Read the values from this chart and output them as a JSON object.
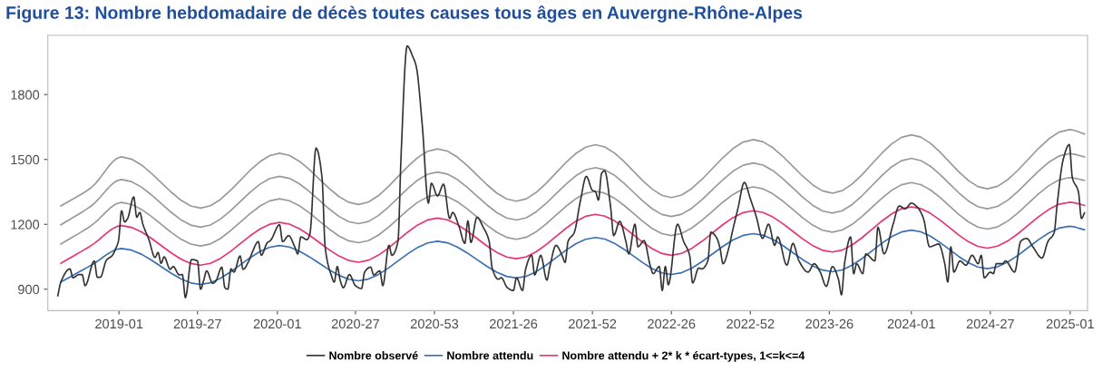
{
  "chart_data": {
    "type": "line",
    "title": "Figure 13: Nombre hebdomadaire de décès toutes causes tous âges en Auvergne-Rhône-Alpes",
    "xlim": [
      "2018-07-21",
      "2025-02-10"
    ],
    "ylim": [
      801,
      2074
    ],
    "xticks": [
      {
        "value": "2019-01-01",
        "label": "2019-01"
      },
      {
        "value": "2019-07-01",
        "label": "2019-27"
      },
      {
        "value": "2020-01-01",
        "label": "2020-01"
      },
      {
        "value": "2020-06-29",
        "label": "2020-27"
      },
      {
        "value": "2020-12-28",
        "label": "2020-53"
      },
      {
        "value": "2021-06-28",
        "label": "2021-26"
      },
      {
        "value": "2021-12-27",
        "label": "2021-52"
      },
      {
        "value": "2022-06-27",
        "label": "2022-26"
      },
      {
        "value": "2022-12-26",
        "label": "2022-52"
      },
      {
        "value": "2023-06-26",
        "label": "2023-26"
      },
      {
        "value": "2024-01-01",
        "label": "2024-01"
      },
      {
        "value": "2024-07-01",
        "label": "2024-27"
      },
      {
        "value": "2025-01-01",
        "label": "2025-01"
      }
    ],
    "yticks": [
      900,
      1200,
      1500,
      1800
    ],
    "grid": false,
    "legend": "bottom",
    "series": [
      {
        "color": "#999999",
        "x": [
          "2018-08-20",
          "2018-10-29",
          "2019-01-07",
          "2019-07-08",
          "2020-01-06",
          "2020-07-06",
          "2021-01-04",
          "2021-07-05",
          "2022-01-03",
          "2022-06-27",
          "2023-01-02",
          "2023-07-03",
          "2024-01-01",
          "2024-06-24",
          "2024-12-30",
          "2025-02-03"
        ],
        "values": [
          1285,
          1370,
          1512,
          1275,
          1529,
          1292,
          1549,
          1307,
          1568,
          1324,
          1592,
          1344,
          1614,
          1364,
          1638,
          1618
        ]
      },
      {
        "color": "#999999",
        "x": [
          "2018-08-20",
          "2018-10-29",
          "2019-01-07",
          "2019-07-08",
          "2020-01-06",
          "2020-07-06",
          "2021-01-04",
          "2021-07-05",
          "2022-01-03",
          "2022-06-27",
          "2023-01-02",
          "2023-07-03",
          "2024-01-01",
          "2024-06-24",
          "2024-12-30",
          "2025-02-03"
        ],
        "values": [
          1198,
          1285,
          1407,
          1187,
          1422,
          1203,
          1442,
          1220,
          1462,
          1236,
          1484,
          1252,
          1505,
          1272,
          1527,
          1512
        ]
      },
      {
        "color": "#999999",
        "x": [
          "2018-08-20",
          "2018-10-29",
          "2019-01-07",
          "2019-07-08",
          "2020-01-06",
          "2020-07-06",
          "2021-01-04",
          "2021-07-05",
          "2022-01-03",
          "2022-06-27",
          "2023-01-02",
          "2023-07-03",
          "2024-01-01",
          "2024-06-24",
          "2024-12-30",
          "2025-02-03"
        ],
        "values": [
          1109,
          1194,
          1301,
          1100,
          1318,
          1115,
          1337,
          1131,
          1353,
          1148,
          1373,
          1164,
          1393,
          1178,
          1416,
          1403
        ]
      },
      {
        "name": "Nombre attendu + 2* k * écart-types, 1<=k<=4",
        "color": "#e8336e",
        "x": [
          "2018-08-20",
          "2018-10-29",
          "2019-01-07",
          "2019-07-08",
          "2020-01-06",
          "2020-07-06",
          "2021-01-04",
          "2021-07-05",
          "2022-01-03",
          "2022-06-27",
          "2023-01-02",
          "2023-07-03",
          "2024-01-01",
          "2024-06-24",
          "2024-12-30",
          "2025-02-03"
        ],
        "values": [
          1020,
          1102,
          1194,
          1011,
          1209,
          1025,
          1229,
          1041,
          1246,
          1057,
          1263,
          1072,
          1281,
          1090,
          1302,
          1288
        ]
      },
      {
        "name": "Nombre attendu",
        "color": "#3a6fb5",
        "x": [
          "2018-08-20",
          "2018-10-29",
          "2019-01-07",
          "2019-07-08",
          "2020-01-06",
          "2020-07-06",
          "2021-01-04",
          "2021-07-05",
          "2022-01-03",
          "2022-06-27",
          "2023-01-02",
          "2023-07-03",
          "2024-01-01",
          "2024-06-24",
          "2024-12-30",
          "2025-02-03"
        ],
        "values": [
          933,
          1011,
          1088,
          922,
          1102,
          939,
          1122,
          952,
          1139,
          968,
          1157,
          981,
          1173,
          995,
          1191,
          1175
        ]
      },
      {
        "name": "Nombre observé",
        "color": "#333333",
        "x": [
          "2018-08-13",
          "2018-08-20",
          "2018-09-10",
          "2018-09-17",
          "2018-10-01",
          "2018-10-08",
          "2018-10-15",
          "2018-11-05",
          "2018-11-12",
          "2018-11-19",
          "2018-12-03",
          "2018-12-17",
          "2018-12-24",
          "2018-12-31",
          "2019-01-07",
          "2019-01-14",
          "2019-01-21",
          "2019-02-04",
          "2019-02-11",
          "2019-02-18",
          "2019-02-25",
          "2019-03-11",
          "2019-03-25",
          "2019-04-01",
          "2019-04-08",
          "2019-04-15",
          "2019-04-29",
          "2019-05-06",
          "2019-05-20",
          "2019-05-27",
          "2019-06-03",
          "2019-06-17",
          "2019-07-01",
          "2019-07-08",
          "2019-07-15",
          "2019-07-22",
          "2019-08-05",
          "2019-08-12",
          "2019-08-26",
          "2019-09-02",
          "2019-09-09",
          "2019-09-16",
          "2019-09-23",
          "2019-10-07",
          "2019-10-14",
          "2019-10-28",
          "2019-11-04",
          "2019-11-18",
          "2019-11-25",
          "2019-12-09",
          "2019-12-16",
          "2020-01-06",
          "2020-01-13",
          "2020-01-27",
          "2020-02-10",
          "2020-02-17",
          "2020-02-24",
          "2020-03-09",
          "2020-03-16",
          "2020-03-30",
          "2020-04-13",
          "2020-04-20",
          "2020-05-04",
          "2020-05-11",
          "2020-05-18",
          "2020-05-25",
          "2020-06-01",
          "2020-06-15",
          "2020-06-29",
          "2020-07-13",
          "2020-07-20",
          "2020-08-03",
          "2020-08-10",
          "2020-08-24",
          "2020-08-31",
          "2020-09-14",
          "2020-09-21",
          "2020-10-05",
          "2020-10-12",
          "2020-10-26",
          "2020-11-09",
          "2020-11-16",
          "2020-11-30",
          "2020-12-14",
          "2020-12-21",
          "2021-01-04",
          "2021-01-18",
          "2021-02-01",
          "2021-02-08",
          "2021-02-22",
          "2021-03-08",
          "2021-03-15",
          "2021-03-22",
          "2021-04-05",
          "2021-04-19",
          "2021-05-03",
          "2021-05-10",
          "2021-05-24",
          "2021-05-31",
          "2021-06-14",
          "2021-06-28",
          "2021-07-05",
          "2021-07-19",
          "2021-07-26",
          "2021-08-09",
          "2021-08-16",
          "2021-08-30",
          "2021-09-13",
          "2021-09-20",
          "2021-10-04",
          "2021-10-18",
          "2021-10-25",
          "2021-11-01",
          "2021-11-15",
          "2021-11-29",
          "2021-12-13",
          "2021-12-27",
          "2022-01-03",
          "2022-01-10",
          "2022-01-17",
          "2022-01-24",
          "2022-02-07",
          "2022-02-14",
          "2022-02-28",
          "2022-03-14",
          "2022-03-21",
          "2022-04-04",
          "2022-04-11",
          "2022-04-25",
          "2022-05-09",
          "2022-05-16",
          "2022-05-30",
          "2022-06-06",
          "2022-06-13",
          "2022-06-20",
          "2022-07-11",
          "2022-07-25",
          "2022-08-08",
          "2022-08-15",
          "2022-08-29",
          "2022-09-05",
          "2022-09-19",
          "2022-09-26",
          "2022-10-10",
          "2022-10-17",
          "2022-10-24",
          "2022-11-07",
          "2022-11-14",
          "2022-11-28",
          "2022-12-12",
          "2022-12-26",
          "2023-01-09",
          "2023-01-23",
          "2023-02-06",
          "2023-02-20",
          "2023-02-27",
          "2023-03-20",
          "2023-04-03",
          "2023-04-17",
          "2023-05-08",
          "2023-05-22",
          "2023-06-05",
          "2023-06-19",
          "2023-07-03",
          "2023-07-17",
          "2023-07-24",
          "2023-07-31",
          "2023-08-14",
          "2023-08-21",
          "2023-08-28",
          "2023-09-11",
          "2023-09-18",
          "2023-10-09",
          "2023-10-16",
          "2023-10-30",
          "2023-11-20",
          "2023-12-04",
          "2023-12-18",
          "2024-01-01",
          "2024-01-15",
          "2024-01-29",
          "2024-02-12",
          "2024-03-04",
          "2024-03-18",
          "2024-03-25",
          "2024-04-01",
          "2024-04-08",
          "2024-04-22",
          "2024-05-06",
          "2024-05-20",
          "2024-06-03",
          "2024-06-10",
          "2024-06-17",
          "2024-07-01",
          "2024-07-08",
          "2024-07-15",
          "2024-07-29",
          "2024-08-05",
          "2024-08-26",
          "2024-09-09",
          "2024-09-23",
          "2024-10-07",
          "2024-10-28",
          "2024-11-11",
          "2024-11-25",
          "2024-12-02",
          "2024-12-16",
          "2024-12-30",
          "2025-01-06",
          "2025-01-20",
          "2025-01-27",
          "2025-02-03"
        ],
        "values": [
          870,
          933,
          994,
          953,
          968,
          968,
          916,
          1031,
          955,
          955,
          1034,
          1057,
          1086,
          1125,
          1263,
          1211,
          1227,
          1327,
          1233,
          1255,
          1201,
          1129,
          1047,
          1070,
          1020,
          1050,
          992,
          1005,
          966,
          968,
          861,
          1037,
          1031,
          900,
          939,
          985,
          927,
          937,
          1002,
          907,
          900,
          994,
          979,
          1054,
          992,
          1034,
          1070,
          1120,
          1057,
          1116,
          1125,
          1198,
          1120,
          1148,
          1096,
          1063,
          1142,
          1129,
          1155,
          1553,
          1416,
          1096,
          966,
          933,
          1005,
          939,
          907,
          968,
          916,
          903,
          979,
          1002,
          966,
          985,
          916,
          1103,
          1057,
          1122,
          1514,
          2025,
          1971,
          1931,
          1657,
          1298,
          1390,
          1331,
          1386,
          1227,
          1255,
          1194,
          1112,
          1216,
          1116,
          1233,
          1188,
          1122,
          998,
          946,
          953,
          907,
          894,
          953,
          894,
          992,
          1057,
          966,
          1057,
          942,
          1005,
          1103,
          1057,
          1024,
          1122,
          1161,
          1305,
          1422,
          1357,
          1351,
          1312,
          1435,
          1448,
          1279,
          1148,
          1214,
          1122,
          1063,
          1201,
          1096,
          1125,
          1011,
          972,
          1005,
          894,
          1005,
          920,
          1201,
          1122,
          1057,
          929,
          998,
          994,
          1031,
          1164,
          1135,
          1090,
          1018,
          1096,
          1161,
          1279,
          1394,
          1318,
          1233,
          1135,
          1201,
          1103,
          1142,
          1011,
          1112,
          1031,
          979,
          1018,
          979,
          913,
          1005,
          946,
          874,
          1018,
          1142,
          972,
          1018,
          972,
          1063,
          1031,
          1187,
          1063,
          1201,
          1285,
          1272,
          1298,
          1279,
          1227,
          1096,
          1109,
          1018,
          933,
          1096,
          979,
          1031,
          1011,
          1057,
          1018,
          1057,
          953,
          979,
          972,
          1018,
          1018,
          1031,
          979,
          1122,
          1135,
          1096,
          1044,
          1122,
          1161,
          1292,
          1501,
          1569,
          1416,
          1351,
          1227,
          1253
        ]
      }
    ]
  }
}
